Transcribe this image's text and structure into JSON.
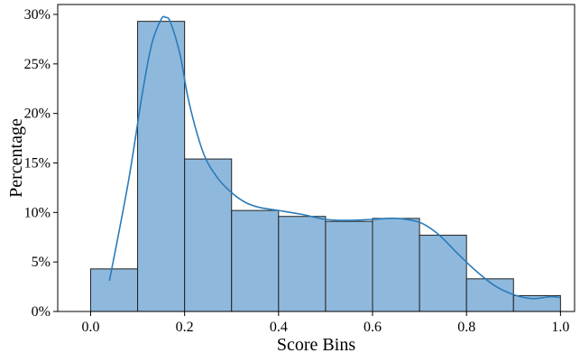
{
  "colors": {
    "bar_fill": "#8fb9dc",
    "bar_edge": "#222222",
    "kde_line": "#2b7bba"
  },
  "chart_data": {
    "type": "bar",
    "title": "",
    "xlabel": "Score Bins",
    "ylabel": "Percentage",
    "xlim": [
      -0.07,
      1.03
    ],
    "ylim": [
      0,
      31
    ],
    "grid": false,
    "x_ticks": [
      0.0,
      0.2,
      0.4,
      0.6,
      0.8,
      1.0
    ],
    "x_tick_labels": [
      "0.0",
      "0.2",
      "0.4",
      "0.6",
      "0.8",
      "1.0"
    ],
    "y_ticks": [
      0,
      5,
      10,
      15,
      20,
      25,
      30
    ],
    "y_tick_labels": [
      "0%",
      "5%",
      "10%",
      "15%",
      "20%",
      "25%",
      "30%"
    ],
    "bin_edges": [
      0.0,
      0.1,
      0.2,
      0.3,
      0.4,
      0.5,
      0.6,
      0.7,
      0.8,
      0.9,
      1.0
    ],
    "values": [
      4.3,
      29.3,
      15.4,
      10.2,
      9.6,
      9.1,
      9.4,
      7.7,
      3.3,
      1.6
    ],
    "kde": {
      "x": [
        0.04,
        0.08,
        0.11,
        0.13,
        0.15,
        0.16,
        0.17,
        0.19,
        0.21,
        0.24,
        0.27,
        0.3,
        0.33,
        0.36,
        0.4,
        0.45,
        0.5,
        0.55,
        0.6,
        0.65,
        0.7,
        0.74,
        0.78,
        0.82,
        0.86,
        0.9,
        0.94,
        0.98,
        1.0
      ],
      "y": [
        3.1,
        13.0,
        22.0,
        27.0,
        29.5,
        29.7,
        29.2,
        26.0,
        21.0,
        16.0,
        13.5,
        12.0,
        11.0,
        10.5,
        10.2,
        9.8,
        9.3,
        9.2,
        9.3,
        9.4,
        9.0,
        7.8,
        5.9,
        4.1,
        2.6,
        1.7,
        1.3,
        1.5,
        1.4
      ]
    }
  }
}
